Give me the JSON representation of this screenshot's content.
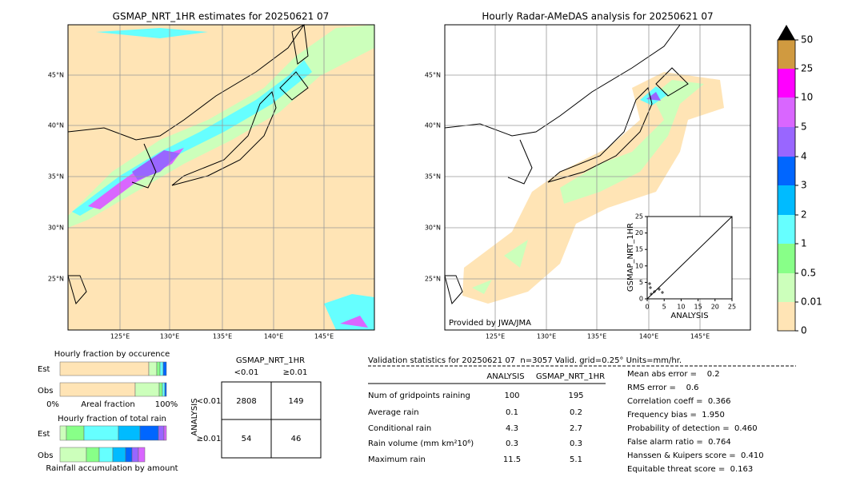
{
  "left_map": {
    "title": "GSMAP_NRT_1HR estimates for 20250621 07",
    "lat_labels": [
      "45°N",
      "40°N",
      "35°N",
      "30°N",
      "25°N"
    ],
    "lon_labels": [
      "125°E",
      "130°E",
      "135°E",
      "140°E",
      "145°E"
    ]
  },
  "right_map": {
    "title": "Hourly Radar-AMeDAS analysis for 20250621 07",
    "lat_labels": [
      "45°N",
      "40°N",
      "35°N",
      "30°N",
      "25°N"
    ],
    "lon_labels": [
      "125°E",
      "130°E",
      "135°E",
      "140°E",
      "145°E"
    ],
    "credit": "Provided by JWA/JMA",
    "inset": {
      "xlabel": "ANALYSIS",
      "ylabel": "GSMAP_NRT_1HR",
      "ticks": [
        0,
        5,
        10,
        15,
        20,
        25
      ]
    }
  },
  "colorbar": {
    "labels": [
      "50",
      "25",
      "10",
      "5",
      "4",
      "3",
      "2",
      "1",
      "0.5",
      "0.01",
      "0"
    ]
  },
  "fraction_occurrence": {
    "title": "Hourly fraction by occurence",
    "rows": [
      "Est",
      "Obs"
    ],
    "axis_labels": [
      "0%",
      "Areal fraction",
      "100%"
    ]
  },
  "fraction_rain": {
    "title": "Hourly fraction of total rain",
    "rows": [
      "Est",
      "Obs"
    ],
    "caption": "Rainfall accumulation by amount"
  },
  "contingency": {
    "title": "GSMAP_NRT_1HR",
    "col_labels": [
      "<0.01",
      "≥0.01"
    ],
    "row_title": "ANALYSIS",
    "row_labels": [
      "<0.01",
      "≥0.01"
    ],
    "cells": [
      [
        2808,
        149
      ],
      [
        54,
        46
      ]
    ]
  },
  "validation": {
    "header": "Validation statistics for 20250621 07  n=3057 Valid. grid=0.25° Units=mm/hr.",
    "columns": [
      "ANALYSIS",
      "GSMAP_NRT_1HR"
    ],
    "rows": [
      {
        "label": "Num of gridpoints raining",
        "values": [
          100,
          195
        ]
      },
      {
        "label": "Average rain",
        "values": [
          0.1,
          0.2
        ]
      },
      {
        "label": "Conditional rain",
        "values": [
          4.3,
          2.7
        ]
      },
      {
        "label": "Rain volume (mm km²10⁶)",
        "values": [
          0.3,
          0.3
        ]
      },
      {
        "label": "Maximum rain",
        "values": [
          11.5,
          5.1
        ]
      }
    ],
    "scores": [
      "Mean abs error =    0.2",
      "RMS error =    0.6",
      "Correlation coeff =  0.366",
      "Frequency bias =  1.950",
      "Probability of detection =  0.460",
      "False alarm ratio =  0.764",
      "Hanssen & Kuipers score =  0.410",
      "Equitable threat score =  0.163"
    ]
  }
}
